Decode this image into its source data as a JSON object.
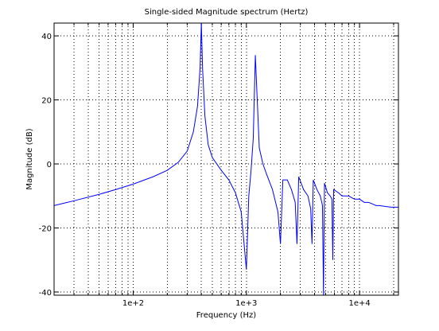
{
  "chart_data": {
    "type": "line",
    "title": "Single-sided Magnitude spectrum (Hertz)",
    "xlabel": "Frequency (Hz)",
    "ylabel": "Magnitude (dB)",
    "xscale": "log",
    "xlim": [
      20,
      22050
    ],
    "ylim": [
      -41,
      44
    ],
    "x_ticks": [
      100,
      1000,
      10000
    ],
    "x_tick_labels": [
      "1e+2",
      "1e+3",
      "1e+4"
    ],
    "y_ticks": [
      -40,
      -20,
      0,
      20,
      40
    ],
    "y_tick_labels": [
      "-40",
      "-20",
      "0",
      "20",
      "40"
    ],
    "grid": true,
    "legend": "none",
    "line_color": "#0000ff",
    "series": [
      {
        "x": [
          20,
          30,
          50,
          70,
          100,
          150,
          200,
          250,
          300,
          340,
          370,
          390,
          400,
          410,
          430,
          460,
          500,
          600,
          700,
          800,
          900,
          1000,
          1050,
          1100,
          1150,
          1200,
          1300,
          1400,
          1500,
          1700,
          1900,
          2000,
          2100,
          2300,
          2500,
          2700,
          2800,
          2900,
          3200,
          3500,
          3700,
          3800,
          3900,
          4200,
          4500,
          4700,
          4800,
          4900,
          5200,
          5500,
          5700,
          5800,
          5900,
          6500,
          7000,
          8000,
          9000,
          10000,
          11000,
          12000,
          13000,
          14000,
          15000,
          17000,
          19000,
          22050
        ],
        "y": [
          -13,
          -11.5,
          -9.5,
          -8,
          -6.3,
          -4,
          -2,
          0.5,
          4,
          10,
          18,
          30,
          44,
          30,
          15,
          6,
          2,
          -2,
          -5,
          -9,
          -15,
          -33,
          -10,
          -2,
          8,
          34,
          5,
          0,
          -3,
          -8,
          -15,
          -25,
          -5,
          -5,
          -8,
          -12,
          -25,
          -4,
          -8,
          -10,
          -14,
          -25,
          -5,
          -8,
          -10,
          -13,
          -41,
          -6,
          -9,
          -10,
          -11,
          -30,
          -8,
          -9,
          -10,
          -10,
          -11,
          -11,
          -12,
          -12,
          -12.5,
          -13,
          -13,
          -13.3,
          -13.5,
          -13.5
        ]
      }
    ]
  }
}
